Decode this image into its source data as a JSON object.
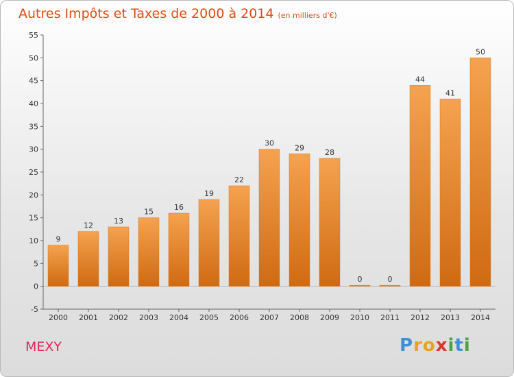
{
  "chart_data": {
    "type": "bar",
    "title": "Autres Impôts et Taxes de 2000 à 2014",
    "subtitle": "(en milliers d'€)",
    "categories": [
      "2000",
      "2001",
      "2002",
      "2003",
      "2004",
      "2005",
      "2006",
      "2007",
      "2008",
      "2009",
      "2010",
      "2011",
      "2012",
      "2013",
      "2014"
    ],
    "values": [
      9,
      12,
      13,
      15,
      16,
      19,
      22,
      30,
      29,
      28,
      0,
      0,
      44,
      41,
      50
    ],
    "ylim": [
      -5,
      55
    ],
    "yticks": [
      -5,
      0,
      5,
      10,
      15,
      20,
      25,
      30,
      35,
      40,
      45,
      50,
      55
    ],
    "grid": false,
    "bar_colors": [
      "#f5a24f",
      "#cf6a12"
    ]
  },
  "footer": {
    "commune": "MEXY",
    "logo_letters": [
      "P",
      "r",
      "o",
      "x",
      "i",
      "t",
      "i"
    ],
    "logo_colors": [
      "#3d8fd6",
      "#e8a21f",
      "#e8a21f",
      "#d8362a",
      "#4aa63a",
      "#3d8fd6",
      "#4aa63a"
    ]
  }
}
